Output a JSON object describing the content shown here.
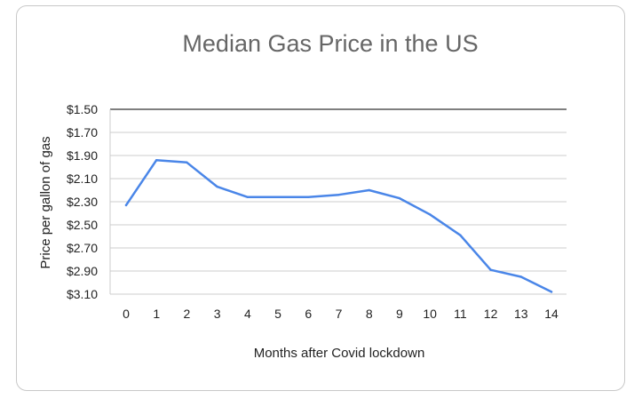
{
  "chart_data": {
    "type": "line",
    "title": "Median Gas Price in the US",
    "xlabel": "Months after Covid lockdown",
    "ylabel": "Price per gallon of gas",
    "x": [
      0,
      1,
      2,
      3,
      4,
      5,
      6,
      7,
      8,
      9,
      10,
      11,
      12,
      13,
      14
    ],
    "series": [
      {
        "values": [
          2.33,
          1.94,
          1.96,
          2.17,
          2.26,
          2.26,
          2.26,
          2.24,
          2.2,
          2.27,
          2.41,
          2.59,
          2.89,
          2.95,
          3.08
        ]
      }
    ],
    "y_ticks": [
      "$1.50",
      "$1.70",
      "$1.90",
      "$2.10",
      "$2.30",
      "$2.50",
      "$2.70",
      "$2.90",
      "$3.10"
    ],
    "x_ticks": [
      "0",
      "1",
      "2",
      "3",
      "4",
      "5",
      "6",
      "7",
      "8",
      "9",
      "10",
      "11",
      "12",
      "13",
      "14"
    ],
    "ylim": [
      1.5,
      3.1
    ],
    "y_inverted": true,
    "grid": true,
    "line_color": "#4a86e8",
    "grid_color": "#cccccc",
    "axis_color": "#333333"
  }
}
